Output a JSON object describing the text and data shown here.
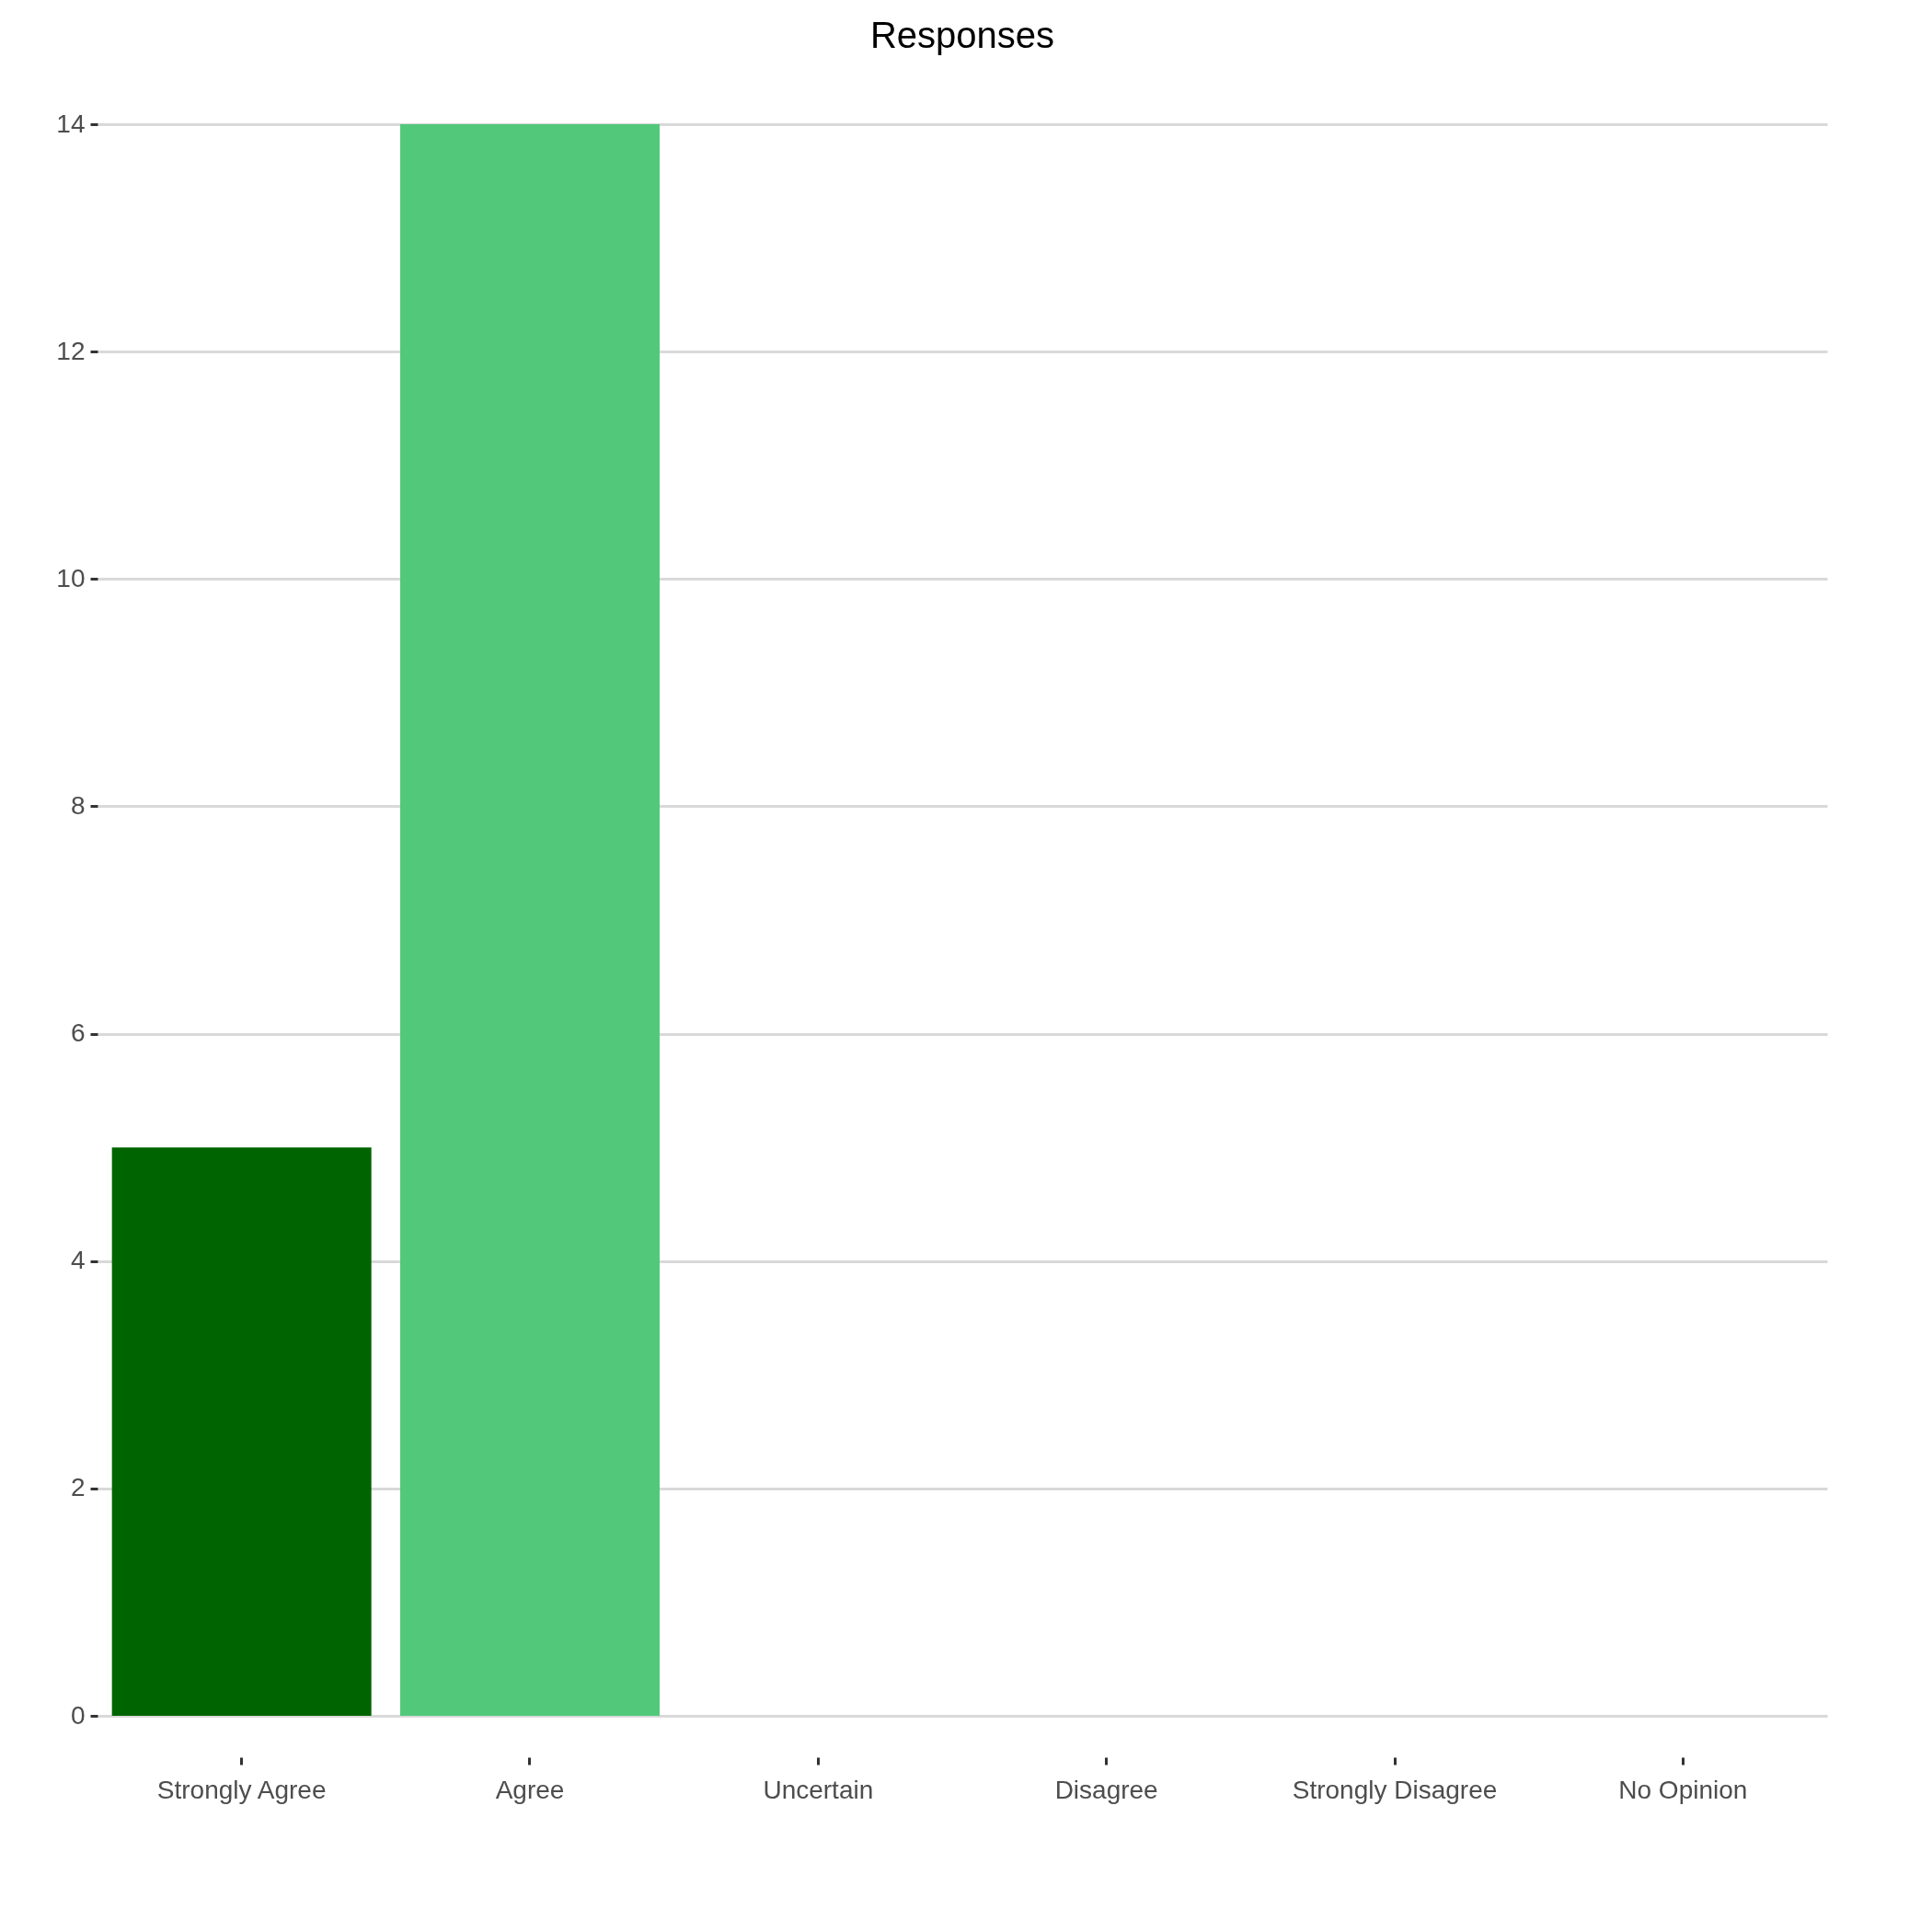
{
  "chart_data": {
    "type": "bar",
    "title": "Responses",
    "categories": [
      "Strongly Agree",
      "Agree",
      "Uncertain",
      "Disagree",
      "Strongly Disagree",
      "No Opinion"
    ],
    "values": [
      5,
      14,
      0,
      0,
      0,
      0
    ],
    "colors": [
      "#006400",
      "#52c97a",
      "#9be0a8",
      "#d9d9d9",
      "#f08080",
      "#b22222"
    ],
    "ylim": [
      0,
      14
    ],
    "yticks": [
      0,
      2,
      4,
      6,
      8,
      10,
      12,
      14
    ],
    "grid": "y",
    "legend": false
  }
}
